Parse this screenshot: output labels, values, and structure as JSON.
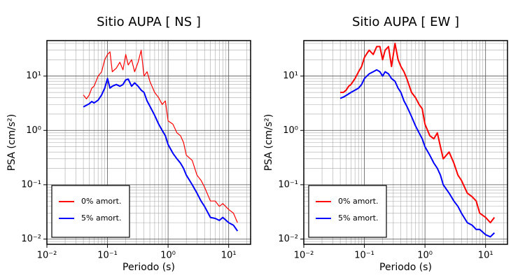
{
  "chart_data": [
    {
      "type": "line",
      "title": "Sitio AUPA [ NS ]",
      "x_label": "Periodo (s)",
      "y_label": "PSA (cm/s²)",
      "log_x": true,
      "log_y": true,
      "grid": true,
      "legend": "lower left",
      "xlim": [
        0.01,
        23
      ],
      "ylim": [
        0.008,
        45
      ],
      "xticks": [
        {
          "value": 0.01,
          "label": "10⁻²"
        },
        {
          "value": 0.1,
          "label": "10⁻¹"
        },
        {
          "value": 1,
          "label": "10⁰"
        },
        {
          "value": 10,
          "label": "10¹"
        }
      ],
      "yticks": [
        {
          "value": 0.01,
          "label": "10⁻²"
        },
        {
          "value": 0.1,
          "label": "10⁻¹"
        },
        {
          "value": 1,
          "label": "10⁰"
        },
        {
          "value": 10,
          "label": "10¹"
        }
      ],
      "xminorticks": [
        0.02,
        0.03,
        0.04,
        0.05,
        0.06,
        0.07,
        0.08,
        0.09,
        0.2,
        0.3,
        0.4,
        0.5,
        0.6,
        0.7,
        0.8,
        0.9,
        2,
        3,
        4,
        5,
        6,
        7,
        8,
        9,
        20
      ],
      "yminorticks": [
        0.009,
        0.02,
        0.03,
        0.04,
        0.05,
        0.06,
        0.07,
        0.08,
        0.09,
        0.2,
        0.3,
        0.4,
        0.5,
        0.6,
        0.7,
        0.8,
        0.9,
        2,
        3,
        4,
        5,
        6,
        7,
        8,
        9,
        20,
        30,
        40
      ],
      "x": [
        0.04,
        0.045,
        0.05,
        0.055,
        0.06,
        0.07,
        0.08,
        0.09,
        0.1,
        0.11,
        0.12,
        0.14,
        0.16,
        0.18,
        0.2,
        0.22,
        0.25,
        0.28,
        0.32,
        0.36,
        0.4,
        0.45,
        0.5,
        0.6,
        0.7,
        0.8,
        0.9,
        1.0,
        1.2,
        1.4,
        1.6,
        1.8,
        2,
        2.5,
        3,
        3.5,
        4,
        5,
        6,
        7,
        8,
        10,
        12,
        14
      ],
      "series": [
        {
          "name": "0% amort.",
          "color": "#ff0000",
          "width": 1.2,
          "values": [
            4.5,
            3.8,
            4.5,
            6,
            6.5,
            10,
            12,
            20,
            25,
            28,
            12,
            14,
            18,
            13,
            25,
            16,
            20,
            12,
            18,
            30,
            10,
            12,
            8,
            5,
            4,
            3,
            3.5,
            1.5,
            1.3,
            0.9,
            0.8,
            0.6,
            0.35,
            0.28,
            0.15,
            0.12,
            0.09,
            0.05,
            0.05,
            0.04,
            0.045,
            0.035,
            0.03,
            0.02
          ]
        },
        {
          "name": "5% amort.",
          "color": "#0000ff",
          "width": 2,
          "values": [
            2.7,
            2.9,
            3.1,
            3.4,
            3.2,
            3.6,
            4.5,
            6,
            9,
            6,
            6.5,
            7,
            6.5,
            7,
            8.5,
            8.8,
            6.5,
            7.5,
            6.5,
            5.5,
            5,
            3.5,
            2.8,
            1.9,
            1.3,
            1.0,
            0.8,
            0.55,
            0.38,
            0.3,
            0.25,
            0.2,
            0.15,
            0.1,
            0.07,
            0.05,
            0.04,
            0.025,
            0.024,
            0.022,
            0.025,
            0.02,
            0.018,
            0.014
          ]
        }
      ]
    },
    {
      "type": "line",
      "title": "Sitio AUPA [ EW ]",
      "x_label": "Periodo (s)",
      "y_label": "PSA (cm/s²)",
      "log_x": true,
      "log_y": true,
      "grid": true,
      "legend": "lower left",
      "xlim": [
        0.01,
        23
      ],
      "ylim": [
        0.008,
        45
      ],
      "xticks": [
        {
          "value": 0.01,
          "label": "10⁻²"
        },
        {
          "value": 0.1,
          "label": "10⁻¹"
        },
        {
          "value": 1,
          "label": "10⁰"
        },
        {
          "value": 10,
          "label": "10¹"
        }
      ],
      "yticks": [
        {
          "value": 0.01,
          "label": "10⁻²"
        },
        {
          "value": 0.1,
          "label": "10⁻¹"
        },
        {
          "value": 1,
          "label": "10⁰"
        },
        {
          "value": 10,
          "label": "10¹"
        }
      ],
      "xminorticks": [
        0.02,
        0.03,
        0.04,
        0.05,
        0.06,
        0.07,
        0.08,
        0.09,
        0.2,
        0.3,
        0.4,
        0.5,
        0.6,
        0.7,
        0.8,
        0.9,
        2,
        3,
        4,
        5,
        6,
        7,
        8,
        9,
        20
      ],
      "yminorticks": [
        0.009,
        0.02,
        0.03,
        0.04,
        0.05,
        0.06,
        0.07,
        0.08,
        0.09,
        0.2,
        0.3,
        0.4,
        0.5,
        0.6,
        0.7,
        0.8,
        0.9,
        2,
        3,
        4,
        5,
        6,
        7,
        8,
        9,
        20,
        30,
        40
      ],
      "x": [
        0.04,
        0.045,
        0.05,
        0.055,
        0.06,
        0.07,
        0.08,
        0.09,
        0.1,
        0.11,
        0.12,
        0.14,
        0.16,
        0.18,
        0.2,
        0.22,
        0.25,
        0.28,
        0.32,
        0.36,
        0.4,
        0.45,
        0.5,
        0.6,
        0.7,
        0.8,
        0.9,
        1.0,
        1.2,
        1.4,
        1.6,
        1.8,
        2,
        2.5,
        3,
        3.5,
        4,
        5,
        6,
        7,
        8,
        10,
        12,
        14
      ],
      "series": [
        {
          "name": "0% amort.",
          "color": "#ff0000",
          "width": 2,
          "values": [
            5,
            5,
            5.5,
            6.5,
            7,
            9,
            12,
            15,
            22,
            26,
            30,
            25,
            35,
            35,
            20,
            30,
            35,
            15,
            40,
            20,
            15,
            12,
            9,
            5,
            4,
            3,
            2.5,
            1.3,
            0.8,
            0.7,
            0.9,
            0.5,
            0.3,
            0.4,
            0.25,
            0.15,
            0.12,
            0.07,
            0.06,
            0.05,
            0.03,
            0.025,
            0.02,
            0.025
          ]
        },
        {
          "name": "5% amort.",
          "color": "#0000ff",
          "width": 2,
          "values": [
            3.9,
            4.1,
            4.4,
            4.7,
            5,
            5.5,
            6,
            7,
            9,
            10,
            11,
            12,
            13,
            12,
            10,
            12,
            11,
            9,
            8,
            6,
            5,
            3.5,
            2.8,
            1.8,
            1.2,
            0.9,
            0.7,
            0.5,
            0.35,
            0.25,
            0.2,
            0.15,
            0.1,
            0.07,
            0.05,
            0.04,
            0.03,
            0.02,
            0.018,
            0.015,
            0.015,
            0.012,
            0.011,
            0.013
          ]
        }
      ]
    }
  ]
}
